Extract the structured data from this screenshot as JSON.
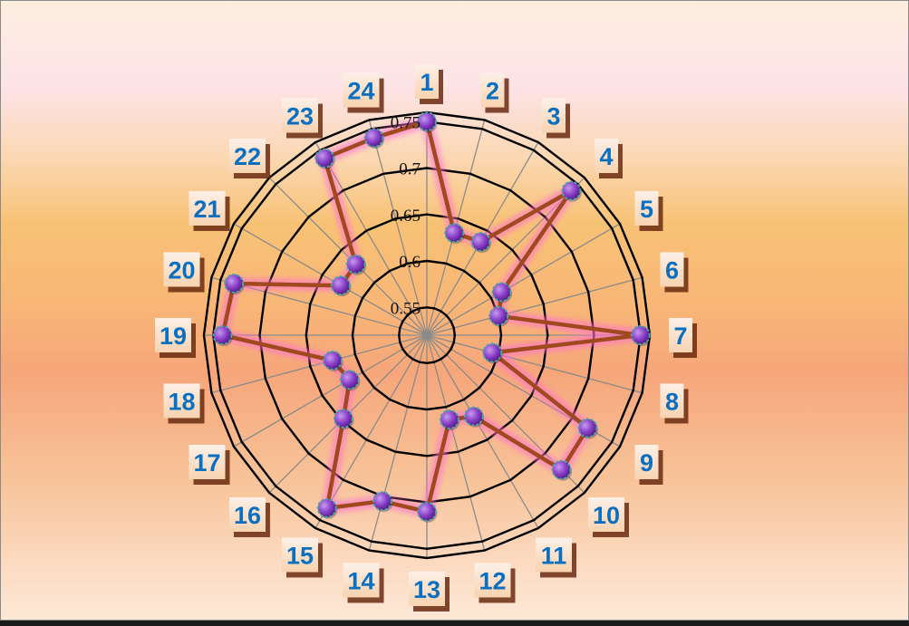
{
  "chart_data": {
    "type": "radar",
    "title": "",
    "categories": [
      "1",
      "2",
      "3",
      "4",
      "5",
      "6",
      "7",
      "8",
      "9",
      "10",
      "11",
      "12",
      "13",
      "14",
      "15",
      "16",
      "17",
      "18",
      "19",
      "20",
      "21",
      "22",
      "23",
      "24"
    ],
    "series": [
      {
        "values": [
          0.75,
          0.634,
          0.636,
          0.74,
          0.613,
          0.6,
          0.75,
          0.593,
          0.72,
          0.725,
          0.621,
          0.614,
          0.71,
          0.705,
          0.735,
          0.647,
          0.616,
          0.625,
          0.74,
          0.735,
          0.627,
          0.628,
          0.74,
          0.74
        ]
      }
    ],
    "rlim": [
      0.52,
      0.76
    ],
    "ring_ticks": [
      0.55,
      0.6,
      0.65,
      0.7,
      0.75
    ],
    "tick_labels": [
      "0.55",
      "0.6",
      "0.65",
      "0.7",
      "0.75"
    ],
    "grid": true,
    "colors": {
      "line": "#a0481e",
      "glow": "#ff70d2",
      "marker": "#8a3fc8",
      "marker_stroke": "#4aa6a6",
      "spoke": "#8a8a8a",
      "ring": "#000000",
      "label": "#0a6fbf"
    }
  }
}
